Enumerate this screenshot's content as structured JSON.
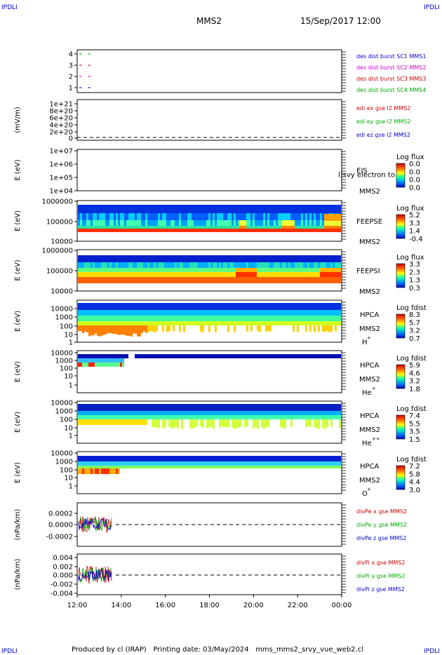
{
  "corner_label": "IPDLI",
  "header": {
    "spacecraft": "MMS2",
    "datetime": "15/Sep/2017 12:00"
  },
  "footer": "Produced by cl (IRAP)   Printing date: 03/May/2024   mms_mms2_srvy_vue_web2.cl",
  "x_axis": {
    "ticks": [
      "12:00",
      "14:00",
      "16:00",
      "18:00",
      "20:00",
      "22:00",
      "00:00"
    ]
  },
  "panels": [
    {
      "id": "burst",
      "yticks": [
        "4",
        "3",
        "2",
        "1"
      ],
      "legend": [
        {
          "text": "des dist burst SC1 MMS1",
          "color": "#0000cc"
        },
        {
          "text": "des dist burst SC2 MMS2",
          "color": "#cc00cc"
        },
        {
          "text": "des dist burst SC3 MMS3",
          "color": "#cc0000"
        },
        {
          "text": "des dist burst SC4 MMS4",
          "color": "#00aa00"
        }
      ]
    },
    {
      "id": "edi",
      "ylabel": "(mV/m)",
      "yticks": [
        "1e+21",
        "8e+20",
        "6e+20",
        "4e+20",
        "2e+20",
        "0"
      ],
      "legend": [
        {
          "text": "edi ex gse l2 MMS2",
          "color": "#cc0000"
        },
        {
          "text": "edi ey gse l2 MMS2",
          "color": "#00aa00"
        },
        {
          "text": "edi ez gse l2 MMS2",
          "color": "#0000cc"
        }
      ]
    },
    {
      "id": "eis",
      "ylabel": "E (eV)",
      "yticks": [
        "1e+07",
        "1e+06",
        "1e+05",
        "1e+04"
      ],
      "side": [
        "EIS",
        "MMS2"
      ],
      "overlay": "l)svy electron to",
      "cbar_title": "Log flux",
      "cbar_ticks": [
        "0.0",
        "0.0",
        "0.0",
        "0.0"
      ]
    },
    {
      "id": "feepse",
      "ylabel": "E (eV)",
      "yticks": [
        "1000000",
        "100000",
        "10000"
      ],
      "side": [
        "FEEPSE",
        "MMS2"
      ],
      "cbar_title": "Log flux",
      "cbar_ticks": [
        "5.2",
        "3.3",
        "1.4",
        "-0.4"
      ]
    },
    {
      "id": "feepsi",
      "ylabel": "E (eV)",
      "yticks": [
        "1000000",
        "100000",
        "10000"
      ],
      "side": [
        "FEEPSI",
        "MMS2"
      ],
      "cbar_title": "Log flux",
      "cbar_ticks": [
        "3.3",
        "2.3",
        "1.3",
        "0.3"
      ]
    },
    {
      "id": "hpca_h",
      "ylabel": "E (eV)",
      "yticks": [
        "10000",
        "1000",
        "100",
        "10",
        "1"
      ],
      "side": [
        "HPCA",
        "MMS2",
        "H",
        "+"
      ],
      "cbar_title": "Log fdist",
      "cbar_ticks": [
        "8.3",
        "5.7",
        "3.2",
        "0.7"
      ]
    },
    {
      "id": "hpca_he",
      "ylabel": "E (eV)",
      "yticks": [
        "10000",
        "1000",
        "100",
        "10",
        "1"
      ],
      "side": [
        "HPCA",
        "MMS2",
        "He",
        "+"
      ],
      "cbar_title": "Log fdist",
      "cbar_ticks": [
        "5.9",
        "4.6",
        "3.2",
        "1.8"
      ]
    },
    {
      "id": "hpca_hepp",
      "ylabel": "E (eV)",
      "yticks": [
        "10000",
        "1000",
        "100",
        "10",
        "1"
      ],
      "side": [
        "HPCA",
        "MMS2",
        "He",
        "++"
      ],
      "cbar_title": "Log fdist",
      "cbar_ticks": [
        "7.4",
        "5.5",
        "3.5",
        "1.5"
      ]
    },
    {
      "id": "hpca_o",
      "ylabel": "E (eV)",
      "yticks": [
        "10000",
        "1000",
        "100",
        "10",
        "1"
      ],
      "side": [
        "HPCA",
        "MMS2",
        "O",
        "+"
      ],
      "cbar_title": "Log fdist",
      "cbar_ticks": [
        "7.2",
        "5.8",
        "4.4",
        "3.0"
      ]
    },
    {
      "id": "divpe",
      "ylabel": "(nPa/km)",
      "yticks": [
        "0.0002",
        "0.0000",
        "-0.0002"
      ],
      "legend": [
        {
          "text": "divPe x gse MMS2",
          "color": "#cc0000"
        },
        {
          "text": "divPe y gse MMS2",
          "color": "#00aa00"
        },
        {
          "text": "divPe z gse MMS2",
          "color": "#0000cc"
        }
      ]
    },
    {
      "id": "divpi",
      "ylabel": "(nPa/km)",
      "yticks": [
        "0.004",
        "0.002",
        "0.000",
        "-0.002",
        "-0.004"
      ],
      "legend": [
        {
          "text": "divPi x gse MMS2",
          "color": "#cc0000"
        },
        {
          "text": "divPi y gse MMS2",
          "color": "#00aa00"
        },
        {
          "text": "divPi z gse MMS2",
          "color": "#0000cc"
        }
      ]
    }
  ],
  "chart_data": [
    {
      "type": "scatter",
      "panel": "burst",
      "ylim": [
        0.5,
        4.5
      ],
      "x_hours": [
        12.1,
        12.5
      ],
      "series": [
        {
          "name": "des dist burst SC1 MMS1",
          "color": "#0000cc",
          "y": [
            1,
            1
          ]
        },
        {
          "name": "des dist burst SC2 MMS2",
          "color": "#cc00cc",
          "y": [
            2,
            2
          ]
        },
        {
          "name": "des dist burst SC3 MMS3",
          "color": "#cc0000",
          "y": [
            3,
            3
          ]
        },
        {
          "name": "des dist burst SC4 MMS4",
          "color": "#00aa00",
          "y": [
            4,
            4
          ]
        }
      ]
    },
    {
      "type": "line",
      "panel": "edi",
      "ylabel": "(mV/m)",
      "ylim": [
        -1e+20,
        1e+21
      ],
      "series": []
    },
    {
      "type": "heatmap",
      "panel": "eis",
      "ylabel": "E (eV)",
      "yscale": "log",
      "ylim": [
        10000.0,
        10000000.0
      ]
    },
    {
      "type": "heatmap",
      "panel": "feepse",
      "ylabel": "E (eV)",
      "yscale": "log",
      "ylim": [
        10000.0,
        1000000.0
      ],
      "color_range": [
        -0.4,
        5.2
      ]
    },
    {
      "type": "heatmap",
      "panel": "feepsi",
      "ylabel": "E (eV)",
      "yscale": "log",
      "ylim": [
        10000.0,
        1000000.0
      ],
      "color_range": [
        0.3,
        3.3
      ]
    },
    {
      "type": "heatmap",
      "panel": "hpca_h",
      "ylabel": "E (eV)",
      "yscale": "log",
      "ylim": [
        1,
        40000
      ],
      "color_range": [
        0.7,
        8.3
      ]
    },
    {
      "type": "heatmap",
      "panel": "hpca_he",
      "ylabel": "E (eV)",
      "yscale": "log",
      "ylim": [
        1,
        40000
      ],
      "color_range": [
        1.8,
        5.9
      ]
    },
    {
      "type": "heatmap",
      "panel": "hpca_hepp",
      "ylabel": "E (eV)",
      "yscale": "log",
      "ylim": [
        1,
        40000
      ],
      "color_range": [
        1.5,
        7.4
      ]
    },
    {
      "type": "heatmap",
      "panel": "hpca_o",
      "ylabel": "E (eV)",
      "yscale": "log",
      "ylim": [
        1,
        40000
      ],
      "color_range": [
        3.0,
        7.2
      ]
    },
    {
      "type": "line",
      "panel": "divpe",
      "ylabel": "(nPa/km)",
      "ylim": [
        -0.0003,
        0.0003
      ],
      "x_range_hours": [
        12.1,
        13.6
      ],
      "series": [
        {
          "name": "divPe x gse MMS2",
          "color": "#cc0000"
        },
        {
          "name": "divPe y gse MMS2",
          "color": "#00aa00"
        },
        {
          "name": "divPe z gse MMS2",
          "color": "#0000cc"
        }
      ]
    },
    {
      "type": "line",
      "panel": "divpi",
      "ylabel": "(nPa/km)",
      "ylim": [
        -0.0045,
        0.0045
      ],
      "x_range_hours": [
        12.1,
        13.6
      ],
      "series": [
        {
          "name": "divPi x gse MMS2",
          "color": "#cc0000"
        },
        {
          "name": "divPi y gse MMS2",
          "color": "#00aa00"
        },
        {
          "name": "divPi z gse MMS2",
          "color": "#0000cc"
        }
      ]
    }
  ]
}
